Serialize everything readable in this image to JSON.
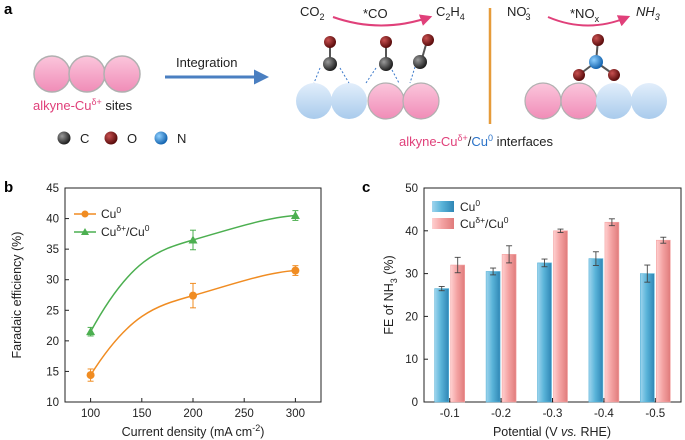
{
  "panel_a": {
    "panel_label": "a",
    "sites_label_prefix": "alkyne-Cu",
    "sites_label_sup": "δ+",
    "sites_label_suffix": " sites",
    "arrow_label": "Integration",
    "legend_atoms": [
      {
        "symbol": "C",
        "color": "#3a3a3a"
      },
      {
        "symbol": "O",
        "color": "#8b1a1a"
      },
      {
        "symbol": "N",
        "color": "#2a8fd6"
      }
    ],
    "co2_reaction": {
      "reactant": "CO",
      "reactant_sub": "2",
      "intermediate": "*CO",
      "product": "C",
      "product_sub1": "2",
      "product_mid": "H",
      "product_sub2": "4"
    },
    "no3_reaction": {
      "reactant": "NO",
      "reactant_sub": "3",
      "reactant_sup": "-",
      "intermediate": "*NO",
      "intermediate_sub": "x",
      "product": "NH",
      "product_sub": "3"
    },
    "interface_prefix": "alkyne-Cu",
    "interface_sup1": "δ+",
    "interface_slash": "/",
    "interface_cu": "Cu",
    "interface_sup2": "0",
    "interface_suffix": " interfaces",
    "colors": {
      "pink": "#f4a6c6",
      "blue": "#c3dcf3",
      "accent": "#e0407a",
      "arrow": "#4a7fc1",
      "divider": "#e69b3a"
    }
  },
  "chart_data": [
    {
      "panel_label": "b",
      "type": "line",
      "xlabel_main": "Current density (mA cm",
      "xlabel_sup": "-2",
      "xlabel_end": ")",
      "ylabel": "Faradaic efficiency (%)",
      "x": [
        100,
        200,
        300
      ],
      "xlim": [
        75,
        325
      ],
      "ylim": [
        10,
        45
      ],
      "xticks": [
        "100",
        "150",
        "200",
        "250",
        "300"
      ],
      "yticks": [
        "10",
        "15",
        "20",
        "25",
        "30",
        "35",
        "40",
        "45"
      ],
      "legend_position": "top-left",
      "series": [
        {
          "name_base": "Cu",
          "name_sup": "0",
          "color": "#f08c22",
          "marker": "circle",
          "values": [
            14.4,
            27.4,
            31.5
          ],
          "errors": [
            1.0,
            2.0,
            0.8
          ]
        },
        {
          "name_base": "Cu",
          "name_sup": "δ+",
          "name_mid": "/Cu",
          "name_sup2": "0",
          "color": "#4caf50",
          "marker": "triangle",
          "values": [
            21.5,
            36.5,
            40.5
          ],
          "errors": [
            0.7,
            1.6,
            0.8
          ]
        }
      ]
    },
    {
      "panel_label": "c",
      "type": "bar",
      "xlabel_main": "Potential (V ",
      "xlabel_italic": "vs.",
      "xlabel_end": " RHE)",
      "ylabel_main": "FE of NH",
      "ylabel_sub": "3",
      "ylabel_end": " (%)",
      "categories": [
        "-0.1",
        "-0.2",
        "-0.3",
        "-0.4",
        "-0.5"
      ],
      "ylim": [
        0,
        50
      ],
      "yticks": [
        "0",
        "10",
        "20",
        "30",
        "40",
        "50"
      ],
      "legend_position": "top-left",
      "series": [
        {
          "name_base": "Cu",
          "name_sup": "0",
          "color": "#5ab4d9",
          "values": [
            26.5,
            30.5,
            32.5,
            33.5,
            30.0
          ],
          "errors": [
            0.5,
            0.8,
            0.9,
            1.6,
            2.0
          ]
        },
        {
          "name_base": "Cu",
          "name_sup": "δ+",
          "name_mid": "/Cu",
          "name_sup2": "0",
          "color": "#f4a3a3",
          "values": [
            32.0,
            34.5,
            40.0,
            42.0,
            37.8
          ],
          "errors": [
            1.8,
            2.0,
            0.4,
            0.8,
            0.7
          ]
        }
      ]
    }
  ]
}
